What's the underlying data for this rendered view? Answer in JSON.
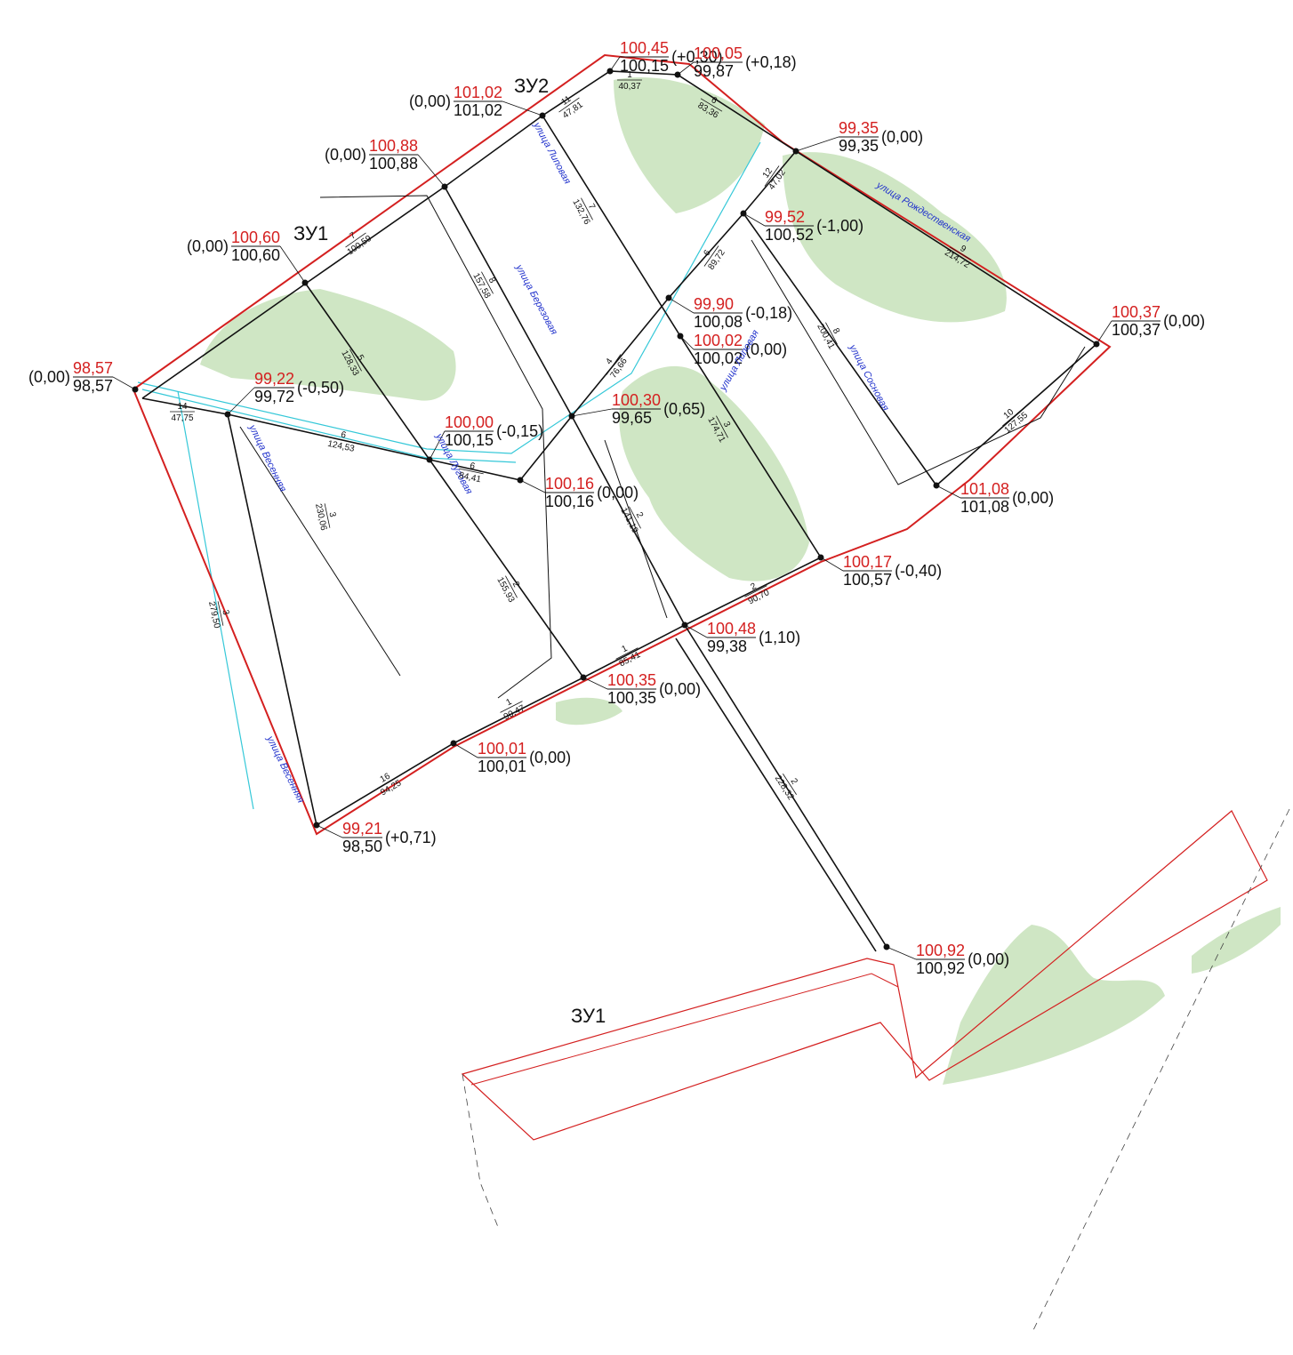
{
  "zones": [
    "ЗУ2",
    "ЗУ1",
    "ЗУ1"
  ],
  "points": [
    {
      "design": "100,45",
      "existing": "100,15",
      "diff": "(+0,30)"
    },
    {
      "design": "100,05",
      "existing": "99,87",
      "diff": "(+0,18)"
    },
    {
      "design": "101,02",
      "existing": "101,02",
      "diff": "(0,00)"
    },
    {
      "design": "99,35",
      "existing": "99,35",
      "diff": "(0,00)"
    },
    {
      "design": "100,88",
      "existing": "100,88",
      "diff": "(0,00)"
    },
    {
      "design": "99,52",
      "existing": "100,52",
      "diff": "(-1,00)"
    },
    {
      "design": "100,60",
      "existing": "100,60",
      "diff": "(0,00)"
    },
    {
      "design": "100,37",
      "existing": "100,37",
      "diff": "(0,00)"
    },
    {
      "design": "99,90",
      "existing": "100,08",
      "diff": "(-0,18)"
    },
    {
      "design": "100,02",
      "existing": "100,02",
      "diff": "(0,00)"
    },
    {
      "design": "98,57",
      "existing": "98,57",
      "diff": "(0,00)"
    },
    {
      "design": "99,22",
      "existing": "99,72",
      "diff": "(-0,50)"
    },
    {
      "design": "100,00",
      "existing": "100,15",
      "diff": "(-0,15)"
    },
    {
      "design": "100,30",
      "existing": "99,65",
      "diff": "(0,65)"
    },
    {
      "design": "100,16",
      "existing": "100,16",
      "diff": "(0,00)"
    },
    {
      "design": "101,08",
      "existing": "101,08",
      "diff": "(0,00)"
    },
    {
      "design": "100,17",
      "existing": "100,57",
      "diff": "(-0,40)"
    },
    {
      "design": "100,48",
      "existing": "99,38",
      "diff": "(1,10)"
    },
    {
      "design": "100,35",
      "existing": "100,35",
      "diff": "(0,00)"
    },
    {
      "design": "100,01",
      "existing": "100,01",
      "diff": "(0,00)"
    },
    {
      "design": "99,21",
      "existing": "98,50",
      "diff": "(+0,71)"
    },
    {
      "design": "100,92",
      "existing": "100,92",
      "diff": "(0,00)"
    }
  ],
  "streets": [
    "улица Липовая",
    "улица Березовая",
    "улица Рождественская",
    "улица Липовая",
    "улица Сосновая",
    "улица Весенняя",
    "улица Луговая",
    "улица Весенняя"
  ],
  "segments": [
    {
      "no": "7",
      "length": "100,59"
    },
    {
      "no": "8",
      "length": "157,58"
    },
    {
      "no": "7",
      "length": "132,76"
    },
    {
      "no": "5",
      "length": "128,33"
    },
    {
      "no": "14",
      "length": "47,75"
    },
    {
      "no": "6",
      "length": "124,53"
    },
    {
      "no": "6",
      "length": "84,41"
    },
    {
      "no": "4",
      "length": "76,66"
    },
    {
      "no": "6",
      "length": "89,72"
    },
    {
      "no": "8",
      "length": "200,41"
    },
    {
      "no": "9",
      "length": "214,72"
    },
    {
      "no": "2",
      "length": "141,19"
    },
    {
      "no": "2",
      "length": "155,93"
    },
    {
      "no": "3",
      "length": "174,71"
    },
    {
      "no": "3",
      "length": "230,06"
    },
    {
      "no": "3",
      "length": "279,50"
    },
    {
      "no": "2",
      "length": "90,70"
    },
    {
      "no": "1",
      "length": "85,41"
    },
    {
      "no": "1",
      "length": "90,47"
    },
    {
      "no": "16",
      "length": "94,25"
    },
    {
      "no": "2",
      "length": "228,32"
    },
    {
      "no": "1",
      "length": "40,37"
    },
    {
      "no": "6",
      "length": "83,36"
    },
    {
      "no": "11",
      "length": "47,81"
    },
    {
      "no": "12",
      "length": "47,02"
    },
    {
      "no": "10",
      "length": "127,55"
    }
  ]
}
